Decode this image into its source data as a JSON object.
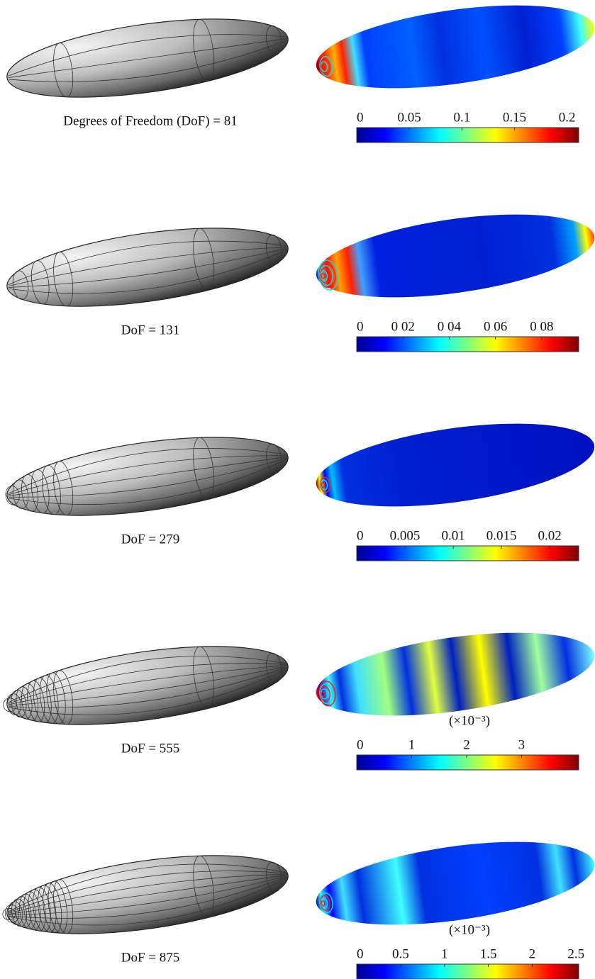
{
  "rows": [
    {
      "caption": "Degrees of Freedom (DoF) = 81",
      "colorbar": {
        "lim": [
          0,
          0.211
        ],
        "ticks": [
          0,
          0.05,
          0.1,
          0.15,
          0.2
        ]
      }
    },
    {
      "caption": "DoF = 131",
      "colorbar": {
        "lim": [
          0,
          0.096
        ],
        "ticks": [
          0,
          {
            "value": 0.02,
            "label": "0 02"
          },
          {
            "value": 0.04,
            "label": "0 04"
          },
          {
            "value": 0.06,
            "label": "0 06"
          },
          {
            "value": 0.08,
            "label": "0 08"
          }
        ]
      }
    },
    {
      "caption": "DoF = 279",
      "colorbar": {
        "lim": [
          0,
          0.023
        ],
        "ticks": [
          0,
          0.005,
          0.01,
          0.015,
          0.02
        ]
      }
    },
    {
      "caption": "DoF = 555",
      "colorbar": {
        "multiplier": "(×10⁻³)",
        "lim": [
          0,
          4.04
        ],
        "ticks": [
          0,
          1,
          2,
          3
        ]
      }
    },
    {
      "caption": "DoF = 875",
      "colorbar": {
        "multiplier": "(×10⁻³)",
        "lim": [
          0,
          2.53
        ],
        "ticks": [
          0,
          0.5,
          1,
          1.5,
          2,
          2.5
        ]
      }
    }
  ]
}
